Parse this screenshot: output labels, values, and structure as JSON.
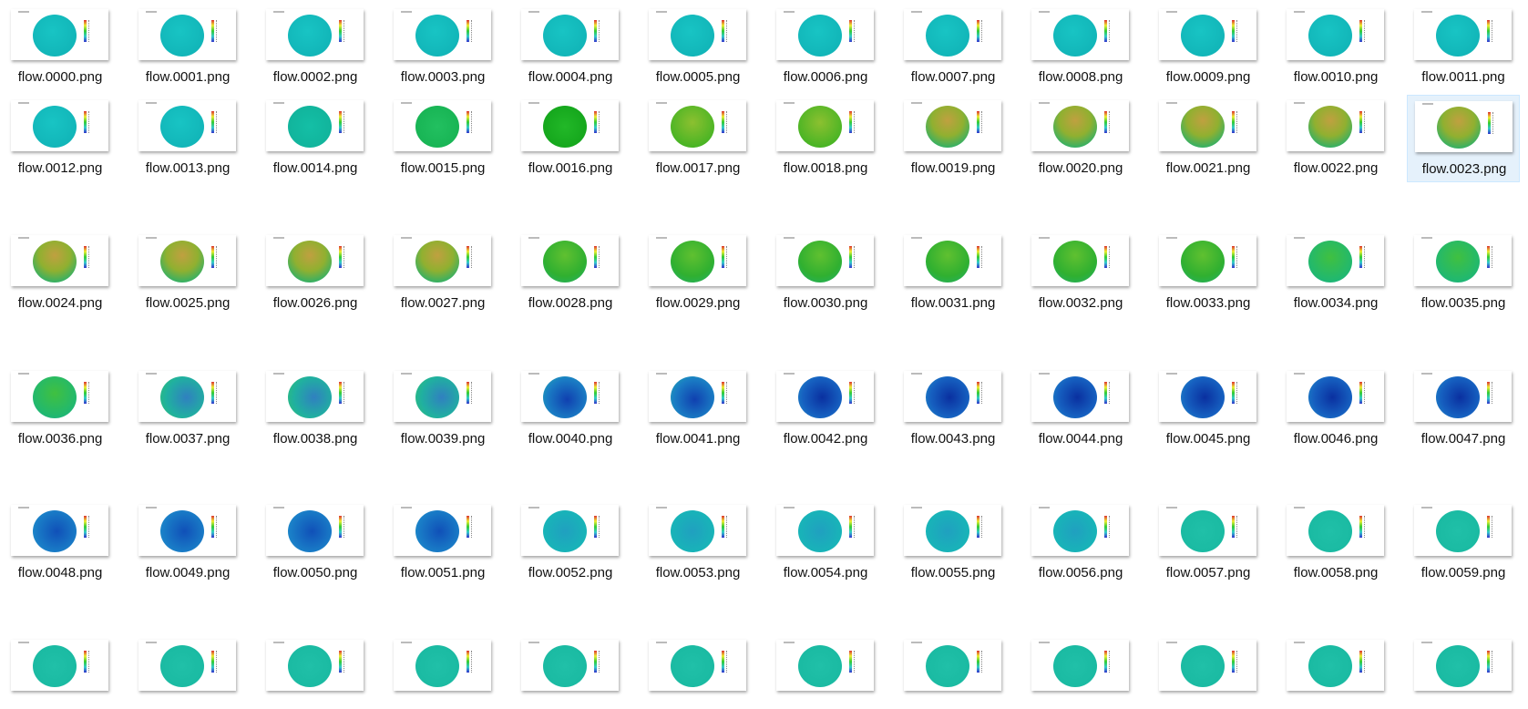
{
  "files": [
    "flow.0000.png",
    "flow.0001.png",
    "flow.0002.png",
    "flow.0003.png",
    "flow.0004.png",
    "flow.0005.png",
    "flow.0006.png",
    "flow.0007.png",
    "flow.0008.png",
    "flow.0009.png",
    "flow.0010.png",
    "flow.0011.png",
    "flow.0012.png",
    "flow.0013.png",
    "flow.0014.png",
    "flow.0015.png",
    "flow.0016.png",
    "flow.0017.png",
    "flow.0018.png",
    "flow.0019.png",
    "flow.0020.png",
    "flow.0021.png",
    "flow.0022.png",
    "flow.0023.png",
    "flow.0024.png",
    "flow.0025.png",
    "flow.0026.png",
    "flow.0027.png",
    "flow.0028.png",
    "flow.0029.png",
    "flow.0030.png",
    "flow.0031.png",
    "flow.0032.png",
    "flow.0033.png",
    "flow.0034.png",
    "flow.0035.png",
    "flow.0036.png",
    "flow.0037.png",
    "flow.0038.png",
    "flow.0039.png",
    "flow.0040.png",
    "flow.0041.png",
    "flow.0042.png",
    "flow.0043.png",
    "flow.0044.png",
    "flow.0045.png",
    "flow.0046.png",
    "flow.0047.png",
    "flow.0048.png",
    "flow.0049.png",
    "flow.0050.png",
    "flow.0051.png",
    "flow.0052.png",
    "flow.0053.png",
    "flow.0054.png",
    "flow.0055.png",
    "flow.0056.png",
    "flow.0057.png",
    "flow.0058.png",
    "flow.0059.png"
  ]
}
